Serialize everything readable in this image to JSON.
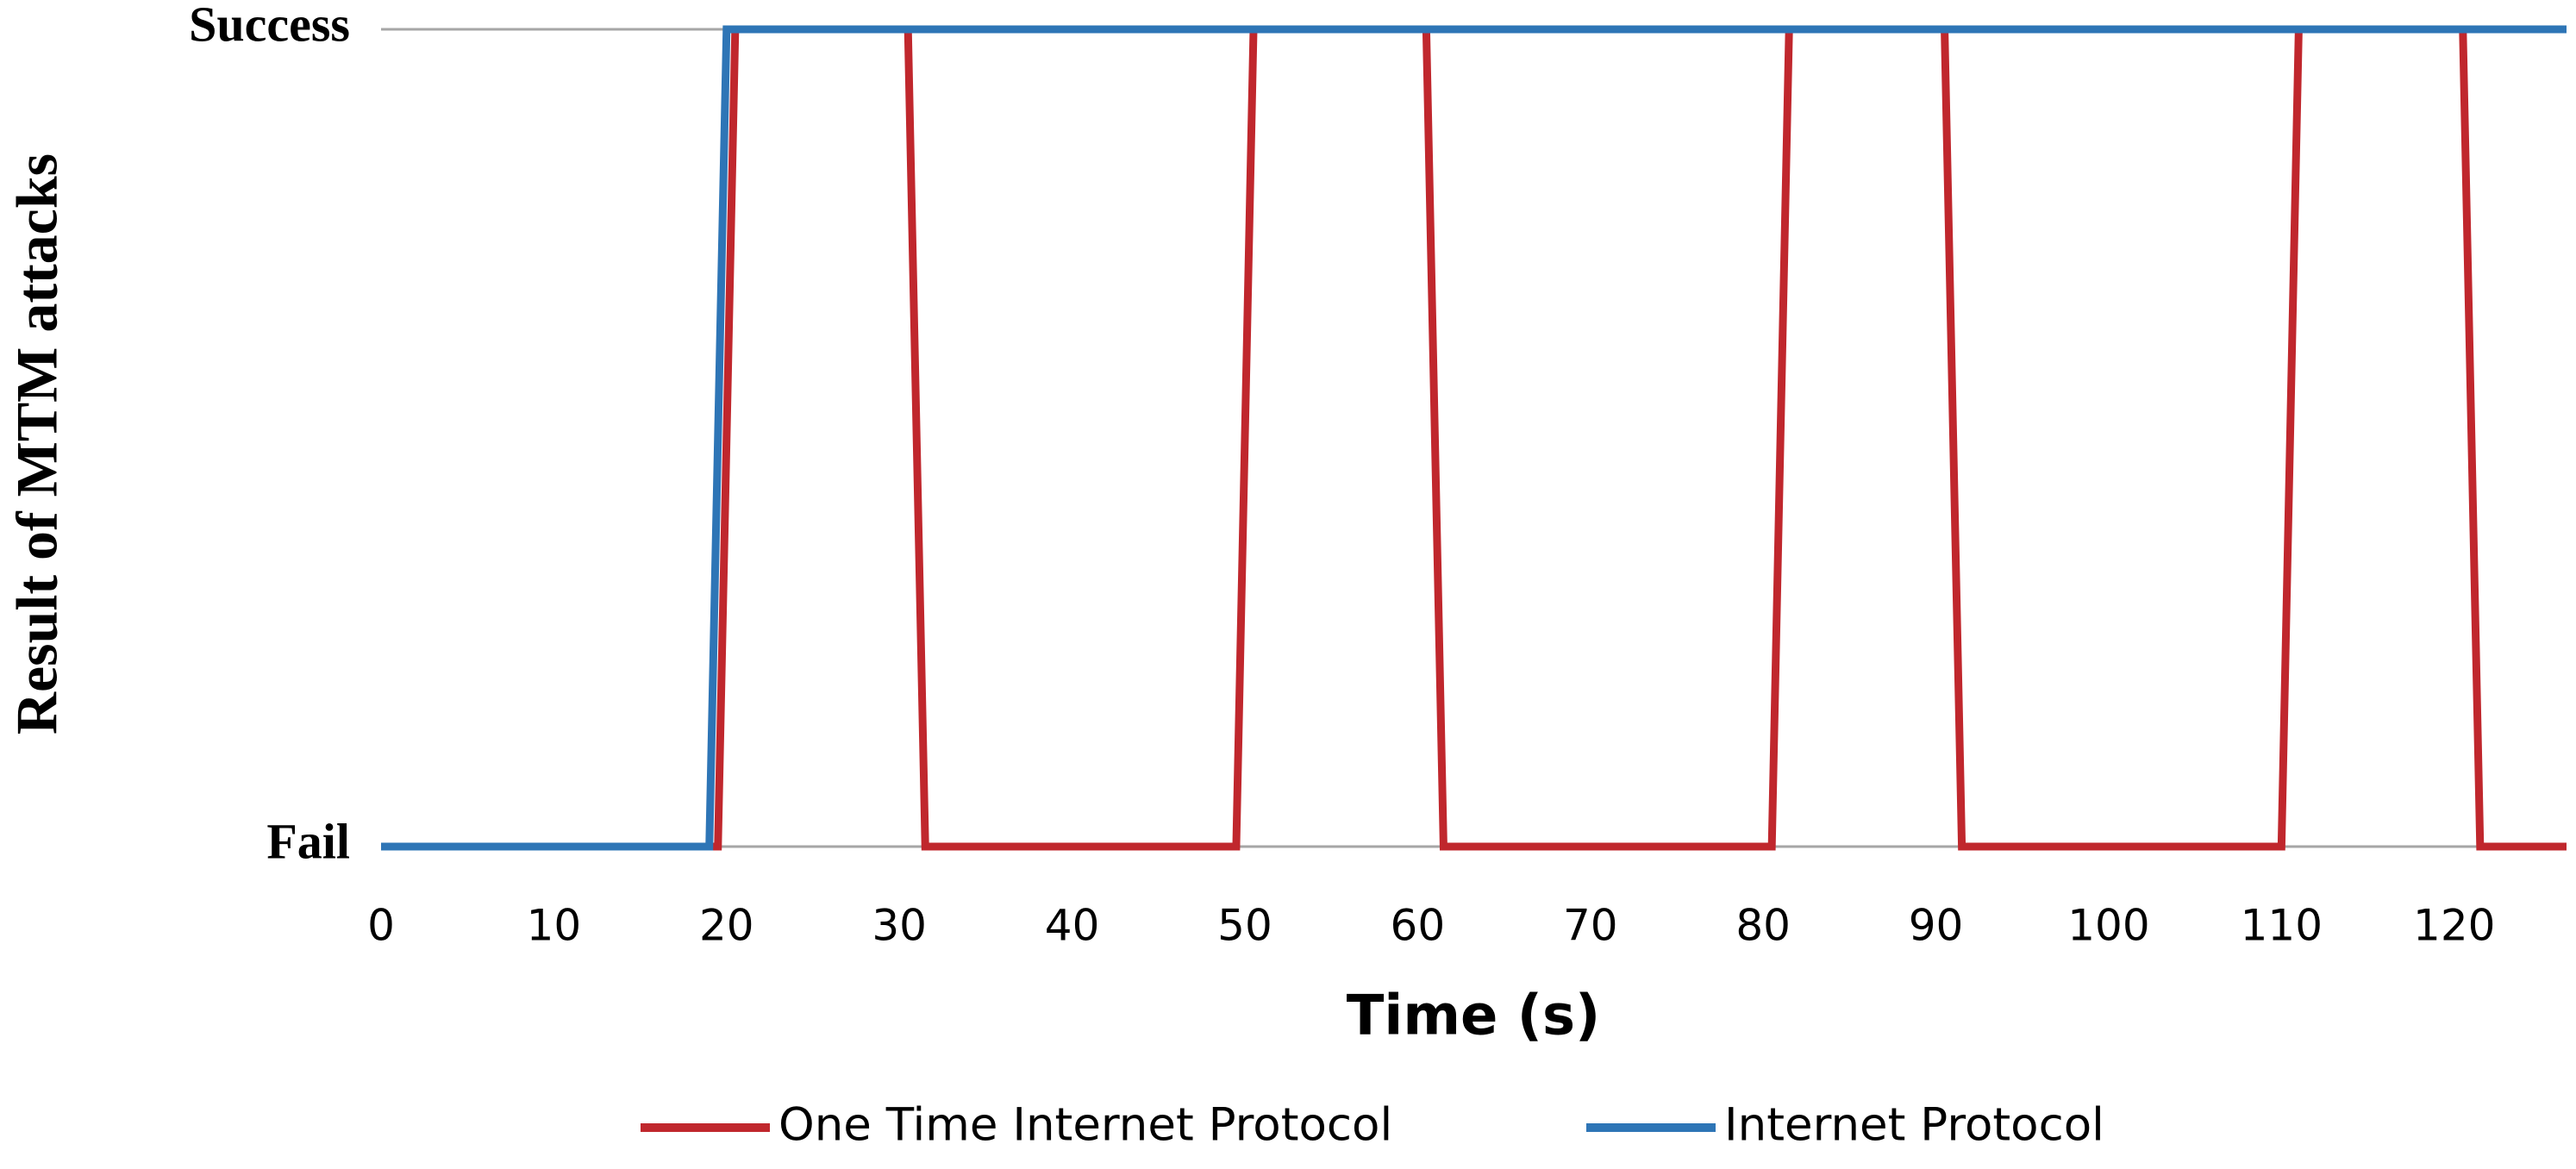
{
  "chart_data": {
    "type": "line",
    "x_label": "Time (s)",
    "y_label": "Result of MTM attacks",
    "xlim": [
      0,
      126.5
    ],
    "xticks": [
      0,
      10,
      20,
      30,
      40,
      50,
      60,
      70,
      80,
      90,
      100,
      110,
      120
    ],
    "ylim": [
      0,
      1
    ],
    "yticks": [
      {
        "value": 0,
        "label": "Fail"
      },
      {
        "value": 1,
        "label": "Success"
      }
    ],
    "grid": true,
    "legend": "bottom",
    "series": [
      {
        "name": "One Time Internet Protocol",
        "color": "#c0272d",
        "x": [
          0,
          19.5,
          20.5,
          30.5,
          31.5,
          49.5,
          50.5,
          60.5,
          61.5,
          80.5,
          81.5,
          90.5,
          91.5,
          110,
          111,
          120.5,
          121.5,
          126.5
        ],
        "values": [
          0,
          0,
          1,
          1,
          0,
          0,
          1,
          1,
          0,
          0,
          1,
          1,
          0,
          0,
          1,
          1,
          0,
          0
        ]
      },
      {
        "name": "Internet Protocol",
        "color": "#2e75b6",
        "x": [
          0,
          19,
          20,
          126.5
        ],
        "values": [
          0,
          0,
          1,
          1
        ]
      }
    ]
  }
}
